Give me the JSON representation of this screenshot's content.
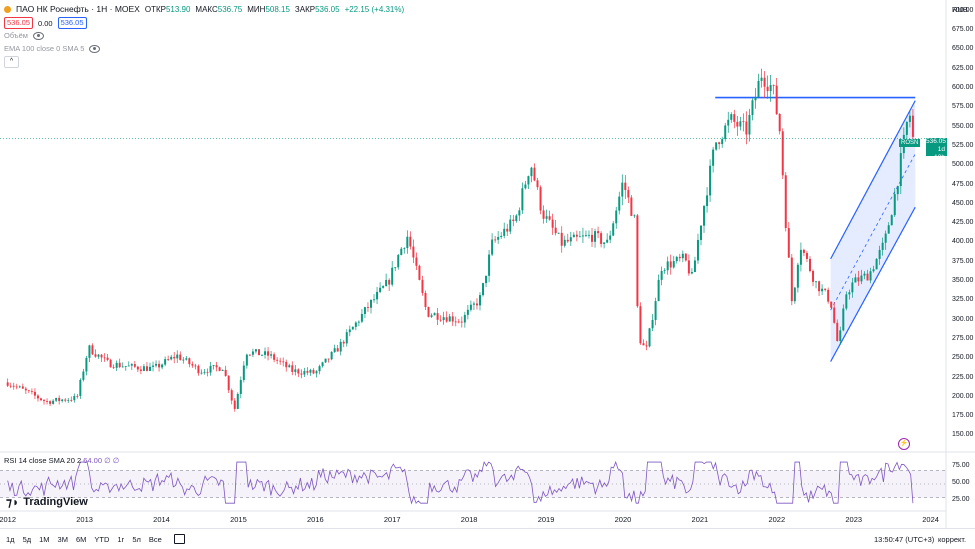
{
  "header": {
    "symbol": "ПАО НК Роснефть · 1Н · MOEX",
    "open_label": "ОТКР",
    "open": "513.90",
    "high_label": "МАКС",
    "high": "536.75",
    "low_label": "МИН",
    "low": "508.15",
    "close_label": "ЗАКР",
    "close": "536.05",
    "change": "+22.15 (+4.31%)",
    "bid": "536.05",
    "spread": "0.00",
    "ask": "536.05",
    "volume_label": "Объём",
    "ema_label": "EMA 100 close 0 SMA 5",
    "collapse_glyph": "^"
  },
  "currency": "RUB",
  "price_tag": {
    "symbol": "ROSN",
    "price": "536.05",
    "countdown": "1d 10h"
  },
  "rsi": {
    "label": "RSI 14 close SMA 20 2",
    "value": "64.00",
    "tail": "∅ ∅"
  },
  "logo_text": "TradingView",
  "timeframes": [
    "1д",
    "5д",
    "1М",
    "3М",
    "6М",
    "YTD",
    "1г",
    "5л",
    "Все"
  ],
  "time_display": "13:50:47 (UTC+3)",
  "correction_label": "коррект.",
  "colors": {
    "up": "#089981",
    "down": "#f23645",
    "line": "#2962ff",
    "rsi": "#7e57c2"
  },
  "chart_data": {
    "type": "candlestick",
    "x_ticks": [
      "2012",
      "2013",
      "2014",
      "2015",
      "2016",
      "2017",
      "2018",
      "2019",
      "2020",
      "2021",
      "2022",
      "2023",
      "2024"
    ],
    "y_ticks": [
      "700.00",
      "675.00",
      "650.00",
      "625.00",
      "600.00",
      "575.00",
      "550.00",
      "525.00",
      "500.00",
      "475.00",
      "450.00",
      "425.00",
      "400.00",
      "375.00",
      "350.00",
      "325.00",
      "300.00",
      "275.00",
      "250.00",
      "225.00",
      "200.00",
      "175.00",
      "150.00"
    ],
    "ylim": [
      135,
      705
    ],
    "rsi_ticks": [
      "75.00",
      "50.00",
      "25.00"
    ],
    "rsi_ylim": [
      15,
      85
    ],
    "rsi_bands": [
      70,
      50,
      30
    ],
    "price_path": [
      [
        2012.0,
        220
      ],
      [
        2012.5,
        195
      ],
      [
        2012.9,
        200
      ],
      [
        2013.05,
        265
      ],
      [
        2013.3,
        245
      ],
      [
        2013.6,
        240
      ],
      [
        2013.9,
        238
      ],
      [
        2014.2,
        255
      ],
      [
        2014.5,
        235
      ],
      [
        2014.8,
        240
      ],
      [
        2014.95,
        185
      ],
      [
        2015.1,
        260
      ],
      [
        2015.4,
        255
      ],
      [
        2015.7,
        235
      ],
      [
        2016.0,
        232
      ],
      [
        2016.3,
        265
      ],
      [
        2016.7,
        320
      ],
      [
        2016.95,
        350
      ],
      [
        2017.1,
        390
      ],
      [
        2017.2,
        410
      ],
      [
        2017.45,
        310
      ],
      [
        2017.7,
        305
      ],
      [
        2017.9,
        300
      ],
      [
        2018.15,
        330
      ],
      [
        2018.3,
        400
      ],
      [
        2018.6,
        430
      ],
      [
        2018.8,
        505
      ],
      [
        2018.95,
        440
      ],
      [
        2019.2,
        400
      ],
      [
        2019.6,
        410
      ],
      [
        2019.8,
        400
      ],
      [
        2020.0,
        480
      ],
      [
        2020.15,
        430
      ],
      [
        2020.2,
        280
      ],
      [
        2020.3,
        260
      ],
      [
        2020.5,
        370
      ],
      [
        2020.8,
        380
      ],
      [
        2020.9,
        355
      ],
      [
        2021.0,
        420
      ],
      [
        2021.2,
        530
      ],
      [
        2021.4,
        560
      ],
      [
        2021.6,
        545
      ],
      [
        2021.8,
        620
      ],
      [
        2021.95,
        600
      ],
      [
        2022.05,
        540
      ],
      [
        2022.1,
        450
      ],
      [
        2022.2,
        320
      ],
      [
        2022.3,
        400
      ],
      [
        2022.5,
        350
      ],
      [
        2022.7,
        325
      ],
      [
        2022.8,
        265
      ],
      [
        2022.9,
        335
      ],
      [
        2023.0,
        350
      ],
      [
        2023.2,
        360
      ],
      [
        2023.4,
        400
      ],
      [
        2023.55,
        470
      ],
      [
        2023.7,
        560
      ],
      [
        2023.75,
        570
      ],
      [
        2023.77,
        536
      ]
    ],
    "resistance_line": {
      "y": 589,
      "x_start": 2021.2,
      "x_end": 2023.8
    },
    "channel": {
      "lower_start": [
        2022.7,
        247
      ],
      "lower_end": [
        2023.8,
        447
      ],
      "upper_start": [
        2022.7,
        380
      ],
      "upper_end": [
        2023.8,
        585
      ]
    },
    "last_price": 536.05
  }
}
